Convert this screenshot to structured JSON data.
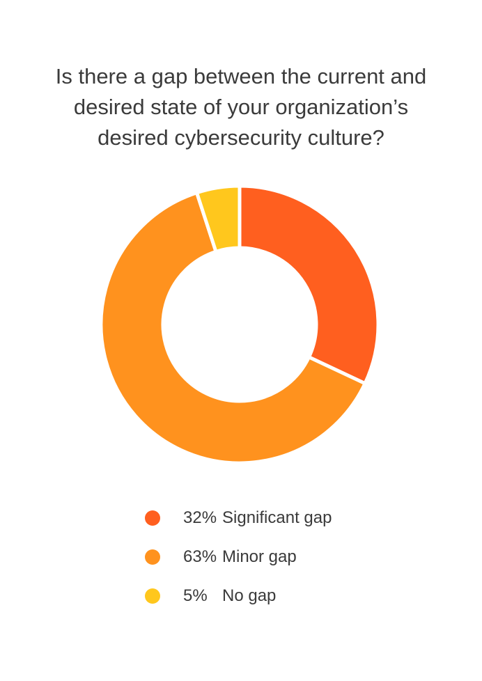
{
  "chart_data": {
    "type": "pie",
    "title_lines": [
      "Is there a gap between the current and",
      "desired state of your organization’s",
      "desired cybersecurity culture?"
    ],
    "hole": "donut",
    "legend_position": "bottom",
    "series": [
      {
        "name": "Significant gap",
        "label": "32%",
        "value": 32,
        "color": "#FF5F1F"
      },
      {
        "name": "Minor gap",
        "label": "63%",
        "value": 63,
        "color": "#FF921E"
      },
      {
        "name": "No gap",
        "label": "5%",
        "value": 5,
        "color": "#FFC71D"
      }
    ]
  }
}
